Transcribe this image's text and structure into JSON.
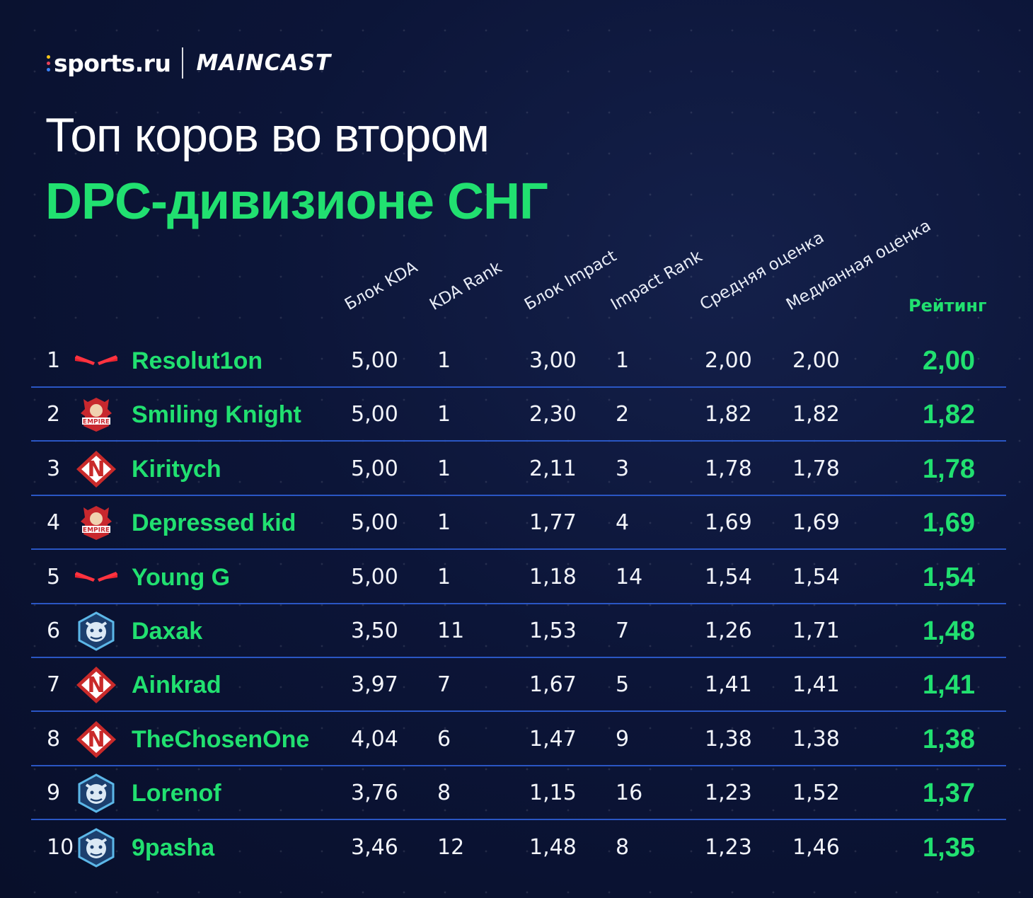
{
  "brand": {
    "sports": "sports.ru",
    "maincast": "MAINCAST",
    "dot_colors": [
      "#f5c518",
      "#e8425a",
      "#3b82f6"
    ]
  },
  "title": {
    "line1": "Топ коров во втором",
    "line2": "DPC-дивизионе СНГ"
  },
  "colors": {
    "accent": "#21e070",
    "divider": "#2a56c4",
    "background": "#0c1538"
  },
  "chart_data": {
    "type": "table",
    "columns": [
      "Блок KDA",
      "KDA Rank",
      "Блок Impact",
      "Impact Rank",
      "Средняя оценка",
      "Медианная оценка",
      "Рейтинг"
    ],
    "rows": [
      {
        "rank": "1",
        "team_logo": "red-chevron-logo",
        "player": "Resolut1on",
        "values": [
          "5,00",
          "1",
          "3,00",
          "1",
          "2,00",
          "2,00"
        ],
        "rating": "2,00"
      },
      {
        "rank": "2",
        "team_logo": "empire-logo",
        "player": "Smiling Knight",
        "values": [
          "5,00",
          "1",
          "2,30",
          "2",
          "1,82",
          "1,82"
        ],
        "rating": "1,82"
      },
      {
        "rank": "3",
        "team_logo": "nemiga-logo",
        "player": "Kiritych",
        "values": [
          "5,00",
          "1",
          "2,11",
          "3",
          "1,78",
          "1,78"
        ],
        "rating": "1,78"
      },
      {
        "rank": "4",
        "team_logo": "empire-logo",
        "player": "Depressed kid",
        "values": [
          "5,00",
          "1",
          "1,77",
          "4",
          "1,69",
          "1,69"
        ],
        "rating": "1,69"
      },
      {
        "rank": "5",
        "team_logo": "red-chevron-logo",
        "player": "Young G",
        "values": [
          "5,00",
          "1",
          "1,18",
          "14",
          "1,54",
          "1,54"
        ],
        "rating": "1,54"
      },
      {
        "rank": "6",
        "team_logo": "yeti-logo",
        "player": "Daxak",
        "values": [
          "3,50",
          "11",
          "1,53",
          "7",
          "1,26",
          "1,71"
        ],
        "rating": "1,48"
      },
      {
        "rank": "7",
        "team_logo": "nemiga-logo",
        "player": "Ainkrad",
        "values": [
          "3,97",
          "7",
          "1,67",
          "5",
          "1,41",
          "1,41"
        ],
        "rating": "1,41"
      },
      {
        "rank": "8",
        "team_logo": "nemiga-logo",
        "player": "TheChosenOne",
        "values": [
          "4,04",
          "6",
          "1,47",
          "9",
          "1,38",
          "1,38"
        ],
        "rating": "1,38"
      },
      {
        "rank": "9",
        "team_logo": "yeti-logo",
        "player": "Lorenof",
        "values": [
          "3,76",
          "8",
          "1,15",
          "16",
          "1,23",
          "1,52"
        ],
        "rating": "1,37"
      },
      {
        "rank": "10",
        "team_logo": "yeti-logo",
        "player": "9pasha",
        "values": [
          "3,46",
          "12",
          "1,48",
          "8",
          "1,23",
          "1,46"
        ],
        "rating": "1,35"
      }
    ]
  }
}
